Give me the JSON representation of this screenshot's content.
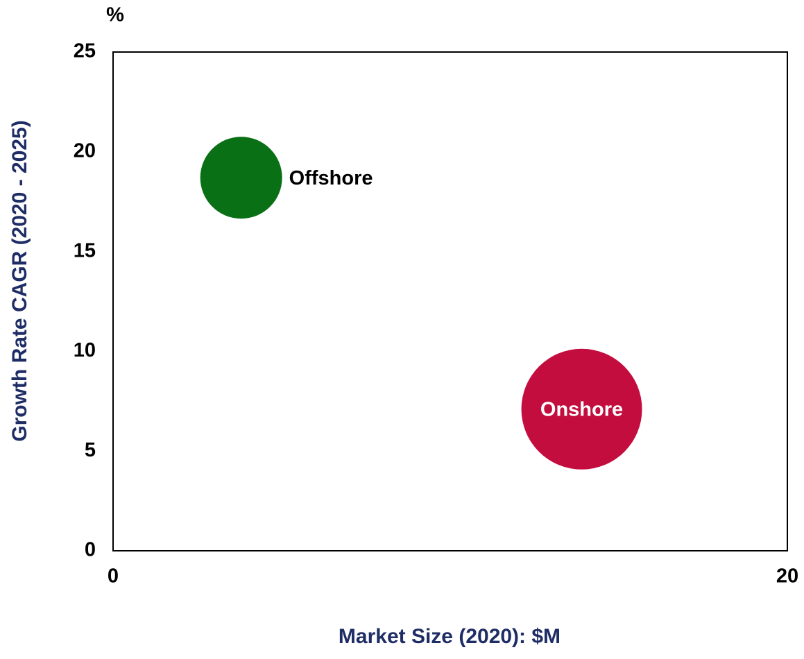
{
  "chart_data": {
    "type": "bubble",
    "y_unit": "%",
    "ylabel": "Growth Rate CAGR (2020 - 2025)",
    "xlabel": "Market Size (2020): $M",
    "xlim": [
      0,
      20
    ],
    "xticks": [
      0,
      20
    ],
    "ylim": [
      0,
      25
    ],
    "yticks": [
      0,
      5,
      10,
      15,
      20,
      25
    ],
    "series": [
      {
        "name": "Offshore",
        "color": "#0a7015",
        "x": [
          3.8
        ],
        "values": [
          18.7
        ],
        "sizes": [
          46
        ],
        "label_position": "right",
        "label_color": "#000000"
      },
      {
        "name": "Onshore",
        "color": "#c30d3e",
        "x": [
          13.9
        ],
        "values": [
          7.1
        ],
        "sizes": [
          100
        ],
        "label_position": "center",
        "label_color": "#ffffff"
      }
    ]
  }
}
